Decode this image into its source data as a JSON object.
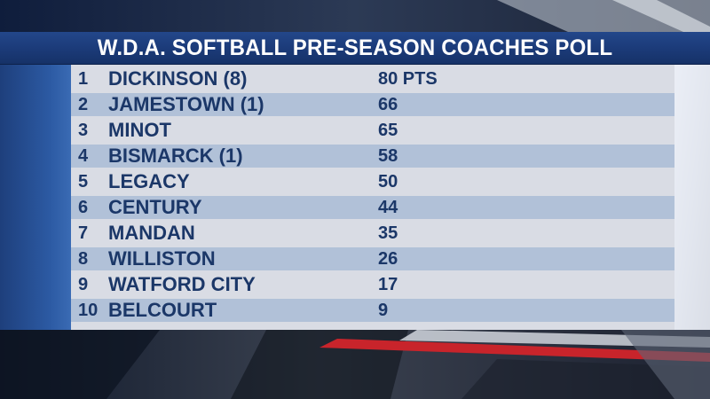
{
  "graphic": {
    "title": "W.D.A. SOFTBALL PRE-SEASON COACHES POLL"
  },
  "colors": {
    "title_bar": "#1b3a78",
    "text": "#1b3768",
    "accent_red": "#c8242b"
  },
  "poll": {
    "rows": [
      {
        "rank": "1",
        "team": "DICKINSON (8)",
        "points": "80 PTS"
      },
      {
        "rank": "2",
        "team": "JAMESTOWN (1)",
        "points": "66"
      },
      {
        "rank": "3",
        "team": "MINOT",
        "points": "65"
      },
      {
        "rank": "4",
        "team": "BISMARCK (1)",
        "points": "58"
      },
      {
        "rank": "5",
        "team": "LEGACY",
        "points": "50"
      },
      {
        "rank": "6",
        "team": "CENTURY",
        "points": "44"
      },
      {
        "rank": "7",
        "team": "MANDAN",
        "points": "35"
      },
      {
        "rank": "8",
        "team": "WILLISTON",
        "points": "26"
      },
      {
        "rank": "9",
        "team": "WATFORD CITY",
        "points": "17"
      },
      {
        "rank": "10",
        "team": "BELCOURT",
        "points": "9"
      }
    ]
  }
}
